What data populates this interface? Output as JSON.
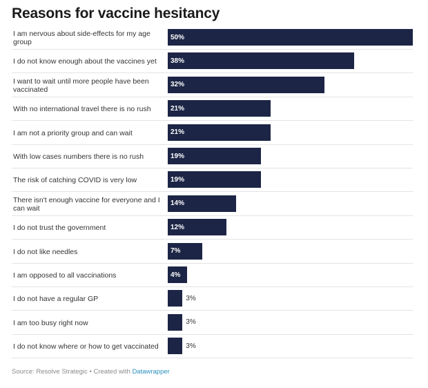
{
  "title": "Reasons for vaccine hesitancy",
  "chart_data": {
    "type": "bar",
    "orientation": "horizontal",
    "title": "Reasons for vaccine hesitancy",
    "unit": "%",
    "xlim": [
      0,
      50
    ],
    "bar_color": "#1c2545",
    "categories": [
      "I am nervous about side-effects for my age group",
      "I do not know enough about the vaccines yet",
      "I want to wait until more people have been vaccinated",
      "With no international travel there is no rush",
      "I am not a priority group and can wait",
      "With low cases numbers there is no rush",
      "The risk of catching COVID is very low",
      "There isn't enough vaccine for everyone and I can wait",
      "I do not trust the government",
      "I do not like needles",
      "I am opposed to all vaccinations",
      "I do not have a regular GP",
      "I am too busy right now",
      "I do not know where or how to get vaccinated"
    ],
    "values": [
      50,
      38,
      32,
      21,
      21,
      19,
      19,
      14,
      12,
      7,
      4,
      3,
      3,
      3
    ],
    "value_labels": [
      "50%",
      "38%",
      "32%",
      "21%",
      "21%",
      "19%",
      "19%",
      "14%",
      "12%",
      "7%",
      "4%",
      "3%",
      "3%",
      "3%"
    ]
  },
  "footer": {
    "source": "Source: Resolve Strategic",
    "separator": " • ",
    "created": "Created with ",
    "tool": "Datawrapper"
  }
}
